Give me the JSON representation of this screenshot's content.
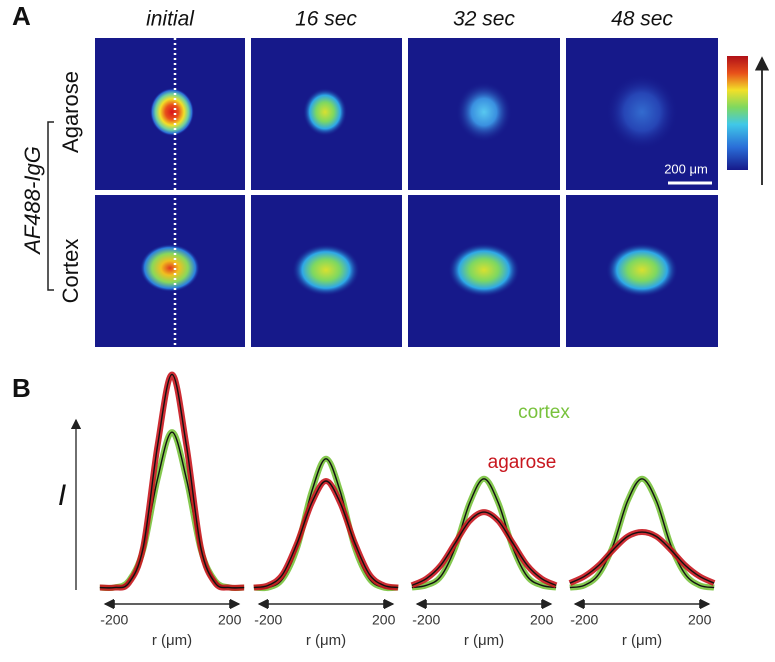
{
  "panel_a": {
    "label": "A",
    "columns": [
      "initial",
      "16 sec",
      "32 sec",
      "48 sec"
    ],
    "rows": [
      "Agarose",
      "Cortex"
    ],
    "group": "AF488-IgG",
    "scale_bar": "200 μm"
  },
  "panel_b": {
    "label": "B"
  },
  "chart_data": [
    {
      "type": "line",
      "y_label": "I",
      "xlabel": "r (μm)",
      "x": [
        -250,
        -200,
        -150,
        -100,
        -50,
        0,
        50,
        100,
        150,
        200,
        250
      ],
      "xlim": [
        -260,
        260
      ],
      "xticks": [
        -200,
        200
      ],
      "ylim": [
        0,
        1
      ],
      "series": [
        {
          "color": "#78c23c",
          "values": [
            0.02,
            0.02,
            0.05,
            0.19,
            0.51,
            0.72,
            0.51,
            0.19,
            0.05,
            0.02,
            0.02
          ]
        },
        {
          "color": "#c8161e",
          "values": [
            0.02,
            0.02,
            0.04,
            0.2,
            0.66,
            0.98,
            0.66,
            0.2,
            0.04,
            0.02,
            0.02
          ]
        }
      ]
    },
    {
      "type": "line",
      "xlabel": "r (μm)",
      "x": [
        -250,
        -200,
        -150,
        -100,
        -50,
        0,
        50,
        100,
        150,
        200,
        250
      ],
      "xlim": [
        -260,
        260
      ],
      "xticks": [
        -200,
        200
      ],
      "ylim": [
        0,
        1
      ],
      "series": [
        {
          "color": "#78c23c",
          "values": [
            0.02,
            0.02,
            0.06,
            0.2,
            0.45,
            0.6,
            0.45,
            0.2,
            0.06,
            0.02,
            0.02
          ]
        },
        {
          "color": "#c8161e",
          "values": [
            0.02,
            0.03,
            0.08,
            0.22,
            0.4,
            0.5,
            0.4,
            0.22,
            0.08,
            0.03,
            0.02
          ]
        }
      ]
    },
    {
      "type": "line",
      "xlabel": "r (μm)",
      "x": [
        -250,
        -200,
        -150,
        -100,
        -50,
        0,
        50,
        100,
        150,
        200,
        250
      ],
      "xlim": [
        -260,
        260
      ],
      "xticks": [
        -200,
        200
      ],
      "ylim": [
        0,
        1
      ],
      "series": [
        {
          "name": "cortex",
          "color": "#78c23c",
          "values": [
            0.02,
            0.03,
            0.07,
            0.2,
            0.4,
            0.51,
            0.4,
            0.2,
            0.07,
            0.03,
            0.02
          ]
        },
        {
          "name": "agarose",
          "color": "#c8161e",
          "values": [
            0.03,
            0.06,
            0.12,
            0.22,
            0.32,
            0.36,
            0.32,
            0.22,
            0.12,
            0.06,
            0.03
          ]
        }
      ]
    },
    {
      "type": "line",
      "xlabel": "r (μm)",
      "x": [
        -250,
        -200,
        -150,
        -100,
        -50,
        0,
        50,
        100,
        150,
        200,
        250
      ],
      "xlim": [
        -260,
        260
      ],
      "xticks": [
        -200,
        200
      ],
      "ylim": [
        0,
        1
      ],
      "series": [
        {
          "color": "#78c23c",
          "values": [
            0.02,
            0.03,
            0.08,
            0.21,
            0.41,
            0.51,
            0.41,
            0.21,
            0.08,
            0.03,
            0.02
          ]
        },
        {
          "color": "#c8161e",
          "values": [
            0.04,
            0.07,
            0.12,
            0.19,
            0.25,
            0.27,
            0.25,
            0.19,
            0.12,
            0.07,
            0.04
          ]
        }
      ]
    }
  ]
}
